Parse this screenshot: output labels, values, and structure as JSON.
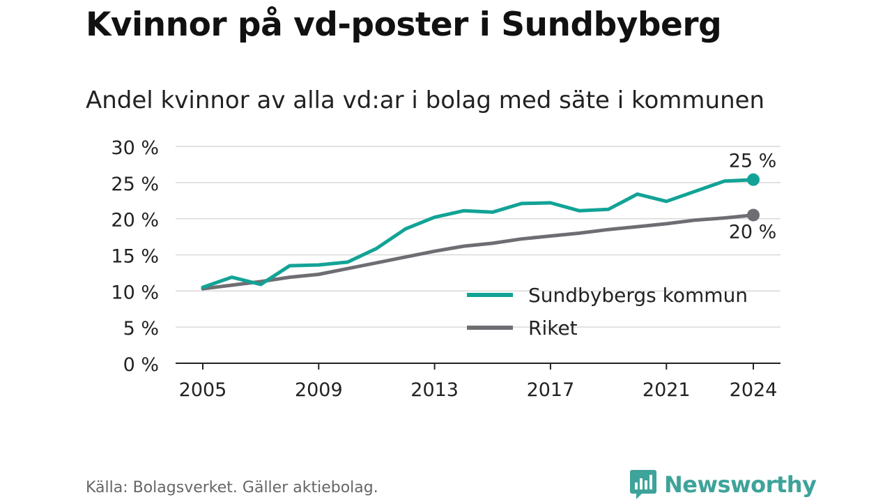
{
  "header": {
    "title": "Kvinnor på vd-poster i Sundbyberg",
    "subtitle": "Andel kvinnor av alla vd:ar i bolag med säte i kommunen"
  },
  "footer": {
    "source": "Källa: Bolagsverket. Gäller aktiebolag.",
    "brand": "Newsworthy"
  },
  "colors": {
    "sundbyberg": "#12a396",
    "riket": "#6e6d72",
    "grid": "#d9d9d9",
    "axis": "#222222",
    "brand": "#3ea39a"
  },
  "chart_data": {
    "type": "line",
    "x": [
      2005,
      2006,
      2007,
      2008,
      2009,
      2010,
      2011,
      2012,
      2013,
      2014,
      2015,
      2016,
      2017,
      2018,
      2019,
      2020,
      2021,
      2022,
      2023,
      2024
    ],
    "series": [
      {
        "name": "Sundbybergs kommun",
        "key": "sundbyberg",
        "values": [
          10.5,
          11.9,
          10.9,
          13.5,
          13.6,
          14.0,
          15.9,
          18.6,
          20.2,
          21.1,
          20.9,
          22.1,
          22.2,
          21.1,
          21.3,
          23.4,
          22.4,
          23.8,
          25.2,
          25.4
        ],
        "end_label": "25 %"
      },
      {
        "name": "Riket",
        "key": "riket",
        "values": [
          10.3,
          10.8,
          11.3,
          11.9,
          12.3,
          13.1,
          13.9,
          14.7,
          15.5,
          16.2,
          16.6,
          17.2,
          17.6,
          18.0,
          18.5,
          18.9,
          19.3,
          19.8,
          20.1,
          20.5
        ],
        "end_label": "20 %"
      }
    ],
    "xticks": [
      2005,
      2009,
      2013,
      2017,
      2021,
      2024
    ],
    "xtick_labels": [
      "2005",
      "2009",
      "2013",
      "2017",
      "2021",
      "2024"
    ],
    "yticks": [
      0,
      5,
      10,
      15,
      20,
      25,
      30
    ],
    "ytick_labels": [
      "0 %",
      "5 %",
      "10 %",
      "15 %",
      "20 %",
      "25 %",
      "30 %"
    ],
    "ylim": [
      0,
      30
    ],
    "xlim": [
      2004,
      2025
    ],
    "grid": true,
    "legend": "bottom-right"
  }
}
